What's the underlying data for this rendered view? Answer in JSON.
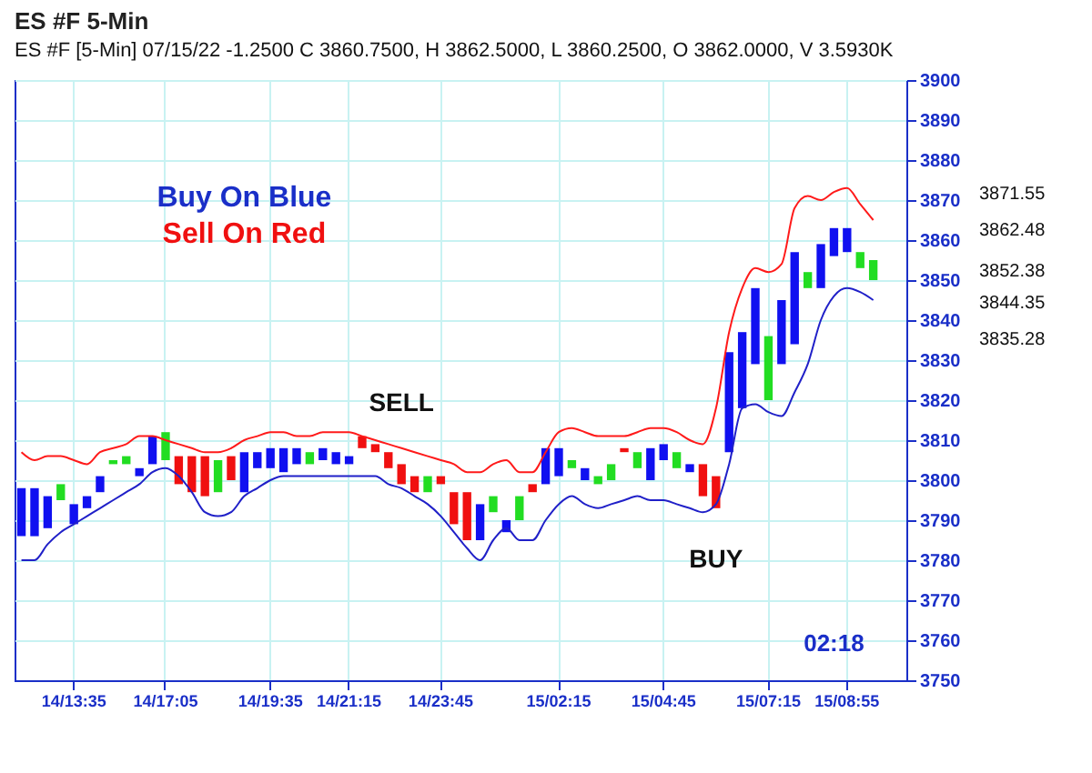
{
  "chart_data": {
    "type": "line",
    "title": "ES #F 5-Min",
    "subtitle": "ES #F [5-Min] 07/15/22  -1.2500 C 3860.7500, H 3862.5000, L 3860.2500, O 3862.0000, V 3.5930K",
    "annotations": [
      "Buy On Blue",
      "Sell On Red",
      "SELL",
      "BUY",
      "02:18",
      "3871.55",
      "3862.48",
      "3852.38",
      "3844.35",
      "3835.28"
    ],
    "categories": [
      null,
      null,
      null,
      null,
      "14/13:35",
      null,
      null,
      null,
      null,
      null,
      null,
      "14/17:05",
      null,
      null,
      null,
      null,
      null,
      null,
      null,
      "14/19:35",
      null,
      null,
      null,
      null,
      null,
      "14/21:15",
      null,
      null,
      null,
      null,
      null,
      null,
      "14/23:45",
      null,
      null,
      null,
      null,
      null,
      null,
      null,
      null,
      "15/02:15",
      null,
      null,
      null,
      null,
      null,
      null,
      null,
      "15/04:45",
      null,
      null,
      null,
      null,
      null,
      null,
      null,
      "15/07:15",
      null,
      null,
      null,
      null,
      null,
      "15/08:55",
      null,
      null,
      null,
      null
    ],
    "series": [
      {
        "type": "bar",
        "base": [
          3786,
          3786,
          3788,
          3795,
          3789,
          3793,
          3797,
          3804,
          3804,
          3801,
          3804,
          3805,
          3799,
          3797,
          3796,
          3797,
          3800,
          3797,
          3803,
          3803,
          3802,
          3804,
          3804,
          3805,
          3804,
          3804,
          3808,
          3807,
          3803,
          3799,
          3797,
          3797,
          3799,
          3789,
          3785,
          3785,
          3792,
          3787,
          3790,
          3797,
          3799,
          3801,
          3803,
          3800,
          3799,
          3800,
          3807,
          3803,
          3800,
          3805,
          3803,
          3802,
          3796,
          3793,
          3807,
          3818,
          3829,
          3820,
          3829,
          3834,
          3848,
          3848,
          3856,
          3857,
          3853,
          3850,
          null,
          null
        ],
        "values": [
          12,
          12,
          8,
          4,
          5,
          3,
          4,
          1,
          2,
          2,
          7,
          7,
          7,
          9,
          10,
          8,
          6,
          10,
          4,
          5,
          6,
          4,
          3,
          3,
          3,
          2,
          3,
          2,
          4,
          5,
          4,
          4,
          2,
          8,
          12,
          9,
          4,
          3,
          6,
          2,
          9,
          7,
          2,
          3,
          2,
          4,
          1,
          4,
          8,
          4,
          4,
          2,
          8,
          8,
          25,
          19,
          19,
          16,
          16,
          23,
          4,
          11,
          7,
          6,
          4,
          5,
          null,
          null
        ],
        "colors": [
          "#1010f0",
          "#1010f0",
          "#1010f0",
          "#22dd22",
          "#1010f0",
          "#1010f0",
          "#1010f0",
          "#22dd22",
          "#22dd22",
          "#1010f0",
          "#1010f0",
          "#22dd22",
          "#f01010",
          "#f01010",
          "#f01010",
          "#22dd22",
          "#f01010",
          "#1010f0",
          "#1010f0",
          "#1010f0",
          "#1010f0",
          "#1010f0",
          "#22dd22",
          "#1010f0",
          "#1010f0",
          "#1010f0",
          "#f01010",
          "#f01010",
          "#f01010",
          "#f01010",
          "#f01010",
          "#22dd22",
          "#f01010",
          "#f01010",
          "#f01010",
          "#1010f0",
          "#22dd22",
          "#1010f0",
          "#22dd22",
          "#f01010",
          "#1010f0",
          "#1010f0",
          "#22dd22",
          "#1010f0",
          "#22dd22",
          "#22dd22",
          "#f01010",
          "#22dd22",
          "#1010f0",
          "#1010f0",
          "#22dd22",
          "#1010f0",
          "#f01010",
          "#f01010",
          "#1010f0",
          "#1010f0",
          "#1010f0",
          "#22dd22",
          "#1010f0",
          "#1010f0",
          "#22dd22",
          "#1010f0",
          "#1010f0",
          "#1010f0",
          "#22dd22",
          "#22dd22",
          null,
          null
        ]
      },
      {
        "type": "line",
        "color": "#ff1a1a",
        "values": [
          3807,
          3805,
          3806,
          3806,
          3805,
          3804,
          3807,
          3808,
          3809,
          3811,
          3811,
          3810,
          3809,
          3808,
          3807,
          3807,
          3808,
          3810,
          3811,
          3812,
          3812,
          3811,
          3811,
          3812,
          3812,
          3812,
          3811,
          3810,
          3809,
          3808,
          3807,
          3806,
          3805,
          3804,
          3802,
          3802,
          3804,
          3805,
          3802,
          3802,
          3807,
          3812,
          3813,
          3812,
          3811,
          3811,
          3811,
          3812,
          3813,
          3813,
          3812,
          3810,
          3809,
          3818,
          3837,
          3848,
          3853,
          3852,
          3854,
          3868,
          3871,
          3870,
          3872,
          3873,
          3869,
          3865,
          null,
          null
        ]
      },
      {
        "type": "line",
        "color": "#2020c8",
        "values": [
          3780,
          3780,
          3784,
          3787,
          3789,
          3791,
          3793,
          3795,
          3797,
          3799,
          3802,
          3803,
          3801,
          3797,
          3792,
          3791,
          3792,
          3796,
          3798,
          3800,
          3801,
          3801,
          3801,
          3801,
          3801,
          3801,
          3801,
          3801,
          3799,
          3798,
          3796,
          3794,
          3791,
          3787,
          3783,
          3780,
          3785,
          3788,
          3785,
          3785,
          3790,
          3794,
          3796,
          3794,
          3793,
          3794,
          3795,
          3796,
          3795,
          3795,
          3794,
          3793,
          3792,
          3794,
          3804,
          3818,
          3819,
          3817,
          3816,
          3822,
          3829,
          3840,
          3846,
          3848,
          3847,
          3845,
          null,
          null
        ]
      }
    ],
    "ylim": [
      3750,
      3900
    ],
    "yticks": [
      3750,
      3760,
      3770,
      3780,
      3790,
      3800,
      3810,
      3820,
      3830,
      3840,
      3850,
      3860,
      3870,
      3880,
      3890,
      3900
    ],
    "grid": true
  }
}
